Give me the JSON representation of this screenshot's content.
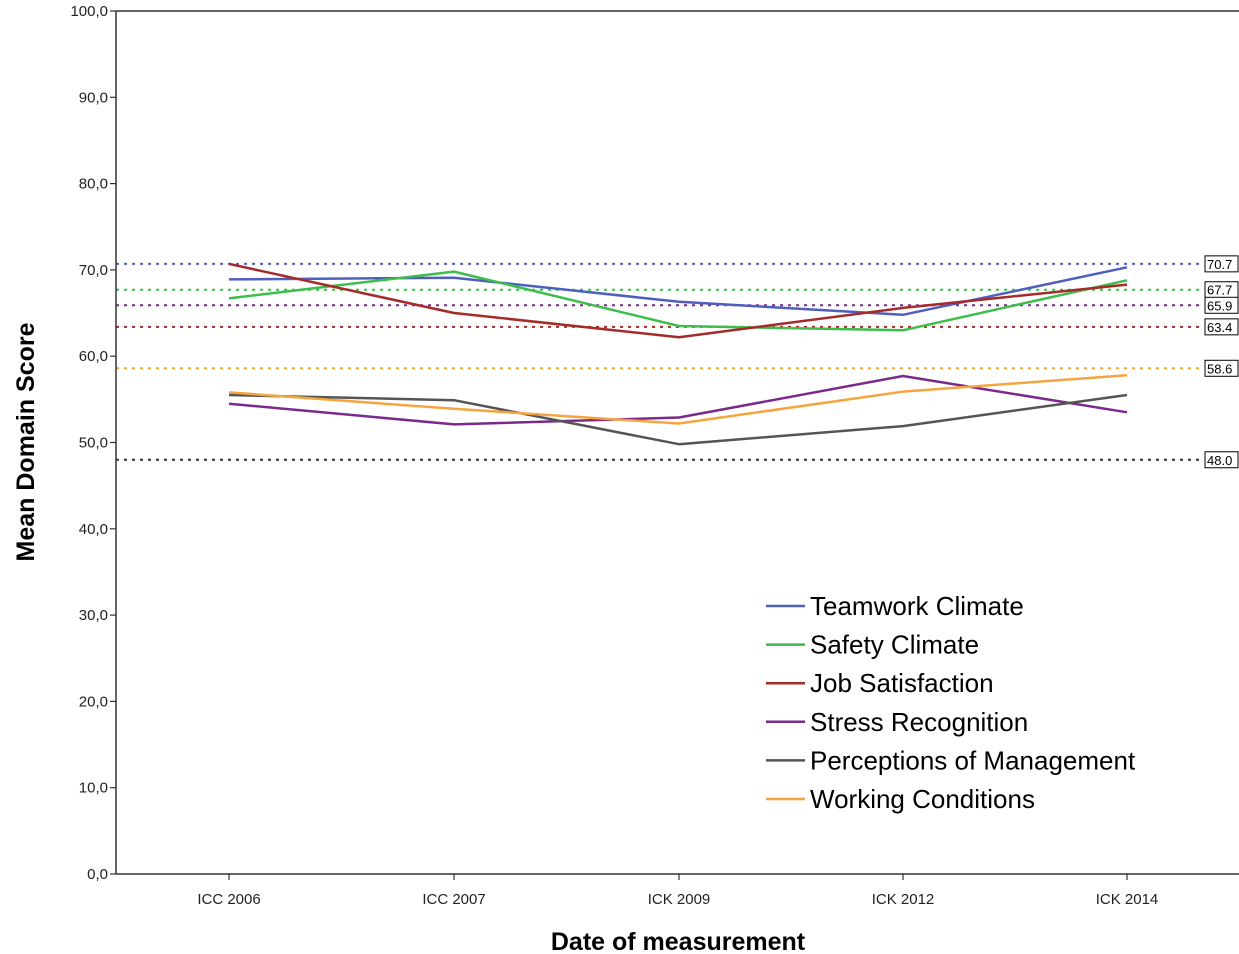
{
  "chart_data": {
    "type": "line",
    "xlabel": "Date of measurement",
    "ylabel": "Mean Domain Score",
    "ylim": [
      0,
      100
    ],
    "yticks": [
      "0,0",
      "10,0",
      "20,0",
      "30,0",
      "40,0",
      "50,0",
      "60,0",
      "70,0",
      "80,0",
      "90,0",
      "100,0"
    ],
    "categories": [
      "ICC 2006",
      "ICC 2007",
      "ICK 2009",
      "ICK 2012",
      "ICK 2014"
    ],
    "legend_position": "bottom-right",
    "grid": false,
    "series": [
      {
        "name": "Teamwork Climate",
        "color": "#4f5fbf",
        "values": [
          68.9,
          69.1,
          66.3,
          64.8,
          70.3
        ]
      },
      {
        "name": "Safety Climate",
        "color": "#3dbd4b",
        "values": [
          66.7,
          69.8,
          63.5,
          63.0,
          68.8
        ]
      },
      {
        "name": "Job Satisfaction",
        "color": "#a52a2a",
        "values": [
          70.7,
          65.0,
          62.2,
          65.6,
          68.3
        ]
      },
      {
        "name": "Stress Recognition",
        "color": "#7b2a8c",
        "values": [
          54.5,
          52.1,
          52.9,
          57.7,
          53.5
        ]
      },
      {
        "name": "Perceptions of Management",
        "color": "#555555",
        "values": [
          55.5,
          54.9,
          49.8,
          51.9,
          55.5
        ]
      },
      {
        "name": "Working Conditions",
        "color": "#f4a540",
        "values": [
          55.8,
          53.9,
          52.2,
          55.9,
          57.8
        ]
      }
    ],
    "reference_lines": [
      {
        "value": 70.7,
        "label": "70.7",
        "color": "#4f5fbf"
      },
      {
        "value": 67.7,
        "label": "67.7",
        "color": "#3dbd4b"
      },
      {
        "value": 65.9,
        "label": "65.9",
        "color": "#7b2a8c"
      },
      {
        "value": 63.4,
        "label": "63.4",
        "color": "#a52a2a"
      },
      {
        "value": 58.6,
        "label": "58.6",
        "color": "#f4a540"
      },
      {
        "value": 48.0,
        "label": "48.0",
        "color": "#333333"
      }
    ]
  }
}
